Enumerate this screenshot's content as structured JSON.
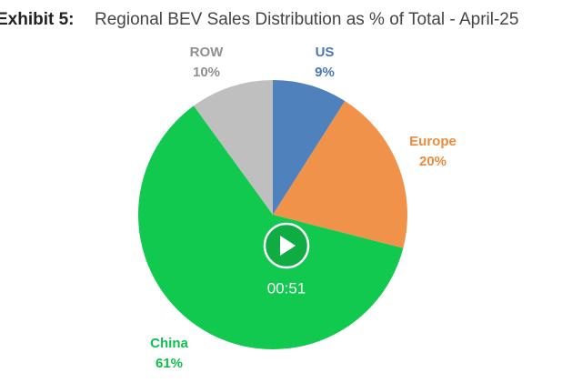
{
  "chart_data": {
    "type": "pie",
    "label": "Exhibit 5:",
    "title": "Regional BEV Sales Distribution as % of Total - April-25",
    "categories": [
      "US",
      "Europe",
      "China",
      "ROW"
    ],
    "values": [
      9,
      20,
      61,
      10
    ],
    "value_labels": [
      "9%",
      "20%",
      "61%",
      "10%"
    ],
    "colors": [
      "#4f81bd",
      "#f0924a",
      "#12c94f",
      "#bfbfbf"
    ],
    "label_colors": [
      "#4a78b0",
      "#ec8a3c",
      "#10c04c",
      "#8f8f8f"
    ]
  },
  "player": {
    "time": "00:51"
  }
}
